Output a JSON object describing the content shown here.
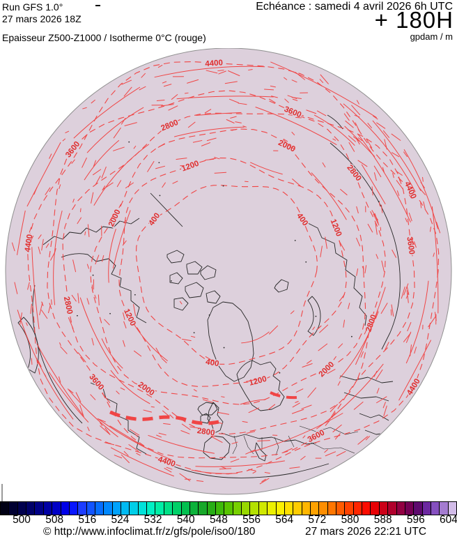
{
  "header": {
    "run_model": "Run GFS 1.0°",
    "run_date": "27 mars 2026 18Z",
    "echeance": "Echéance : samedi 4 avril 2026 6h UTC",
    "forecast_offset": "+ 180H",
    "units": "gpdam / m",
    "param_title": "Epaisseur Z500-Z1000 / Isotherme 0°C (rouge)"
  },
  "map": {
    "background_color": "#ddd0dc",
    "edge_color": "#8f8f8f",
    "contour_color": "#f04545",
    "contour_label_color": "#e02d2d",
    "coast_color": "#262626",
    "isotherm_rings": [
      {
        "value": "400",
        "radius": 128,
        "label_angles": [
          100,
          215,
          325
        ]
      },
      {
        "value": "1200",
        "radius": 162,
        "label_angles": [
          75,
          155,
          250,
          338
        ]
      },
      {
        "value": "2000",
        "radius": 196,
        "label_angles": [
          45,
          125,
          205,
          295
        ]
      },
      {
        "value": "2800",
        "radius": 230,
        "label_angles": [
          20,
          98,
          168,
          248,
          322
        ]
      },
      {
        "value": "3600",
        "radius": 263,
        "label_angles": [
          62,
          140,
          218,
          292,
          352
        ]
      },
      {
        "value": "4400",
        "radius": 294,
        "label_angles": [
          32,
          108,
          188,
          266,
          336
        ]
      }
    ]
  },
  "colorbar": {
    "ticks": [
      "500",
      "508",
      "516",
      "524",
      "532",
      "540",
      "548",
      "556",
      "564",
      "572",
      "580",
      "588",
      "596",
      "604"
    ],
    "cells": [
      "#000014",
      "#000032",
      "#00004e",
      "#000068",
      "#000086",
      "#0000a4",
      "#0000c6",
      "#0000e8",
      "#0816ff",
      "#1c3cff",
      "#1254ff",
      "#066eff",
      "#0088ff",
      "#00a2fc",
      "#00baf2",
      "#00cee8",
      "#00e2da",
      "#00f0c4",
      "#00eea6",
      "#00e086",
      "#00d068",
      "#02c050",
      "#0cb23a",
      "#18a82a",
      "#28ae16",
      "#3eba0a",
      "#58c400",
      "#78d000",
      "#98d800",
      "#b4e000",
      "#d0e800",
      "#ecf000",
      "#fcf000",
      "#ffe000",
      "#ffcc00",
      "#ffb600",
      "#ffa200",
      "#ff8e00",
      "#ff7600",
      "#ff5c00",
      "#ff4200",
      "#ff2600",
      "#fc0c00",
      "#e80004",
      "#cc0018",
      "#b0002c",
      "#920042",
      "#740054",
      "#5e0a6e",
      "#6c28a0",
      "#8650c0",
      "#a47cd0",
      "#d2bce8"
    ]
  },
  "footer": {
    "copyright": "© http://www.infoclimat.fr/z/gfs/pole/iso0/180",
    "generated_at": "27 mars 2026 22:21 UTC"
  }
}
